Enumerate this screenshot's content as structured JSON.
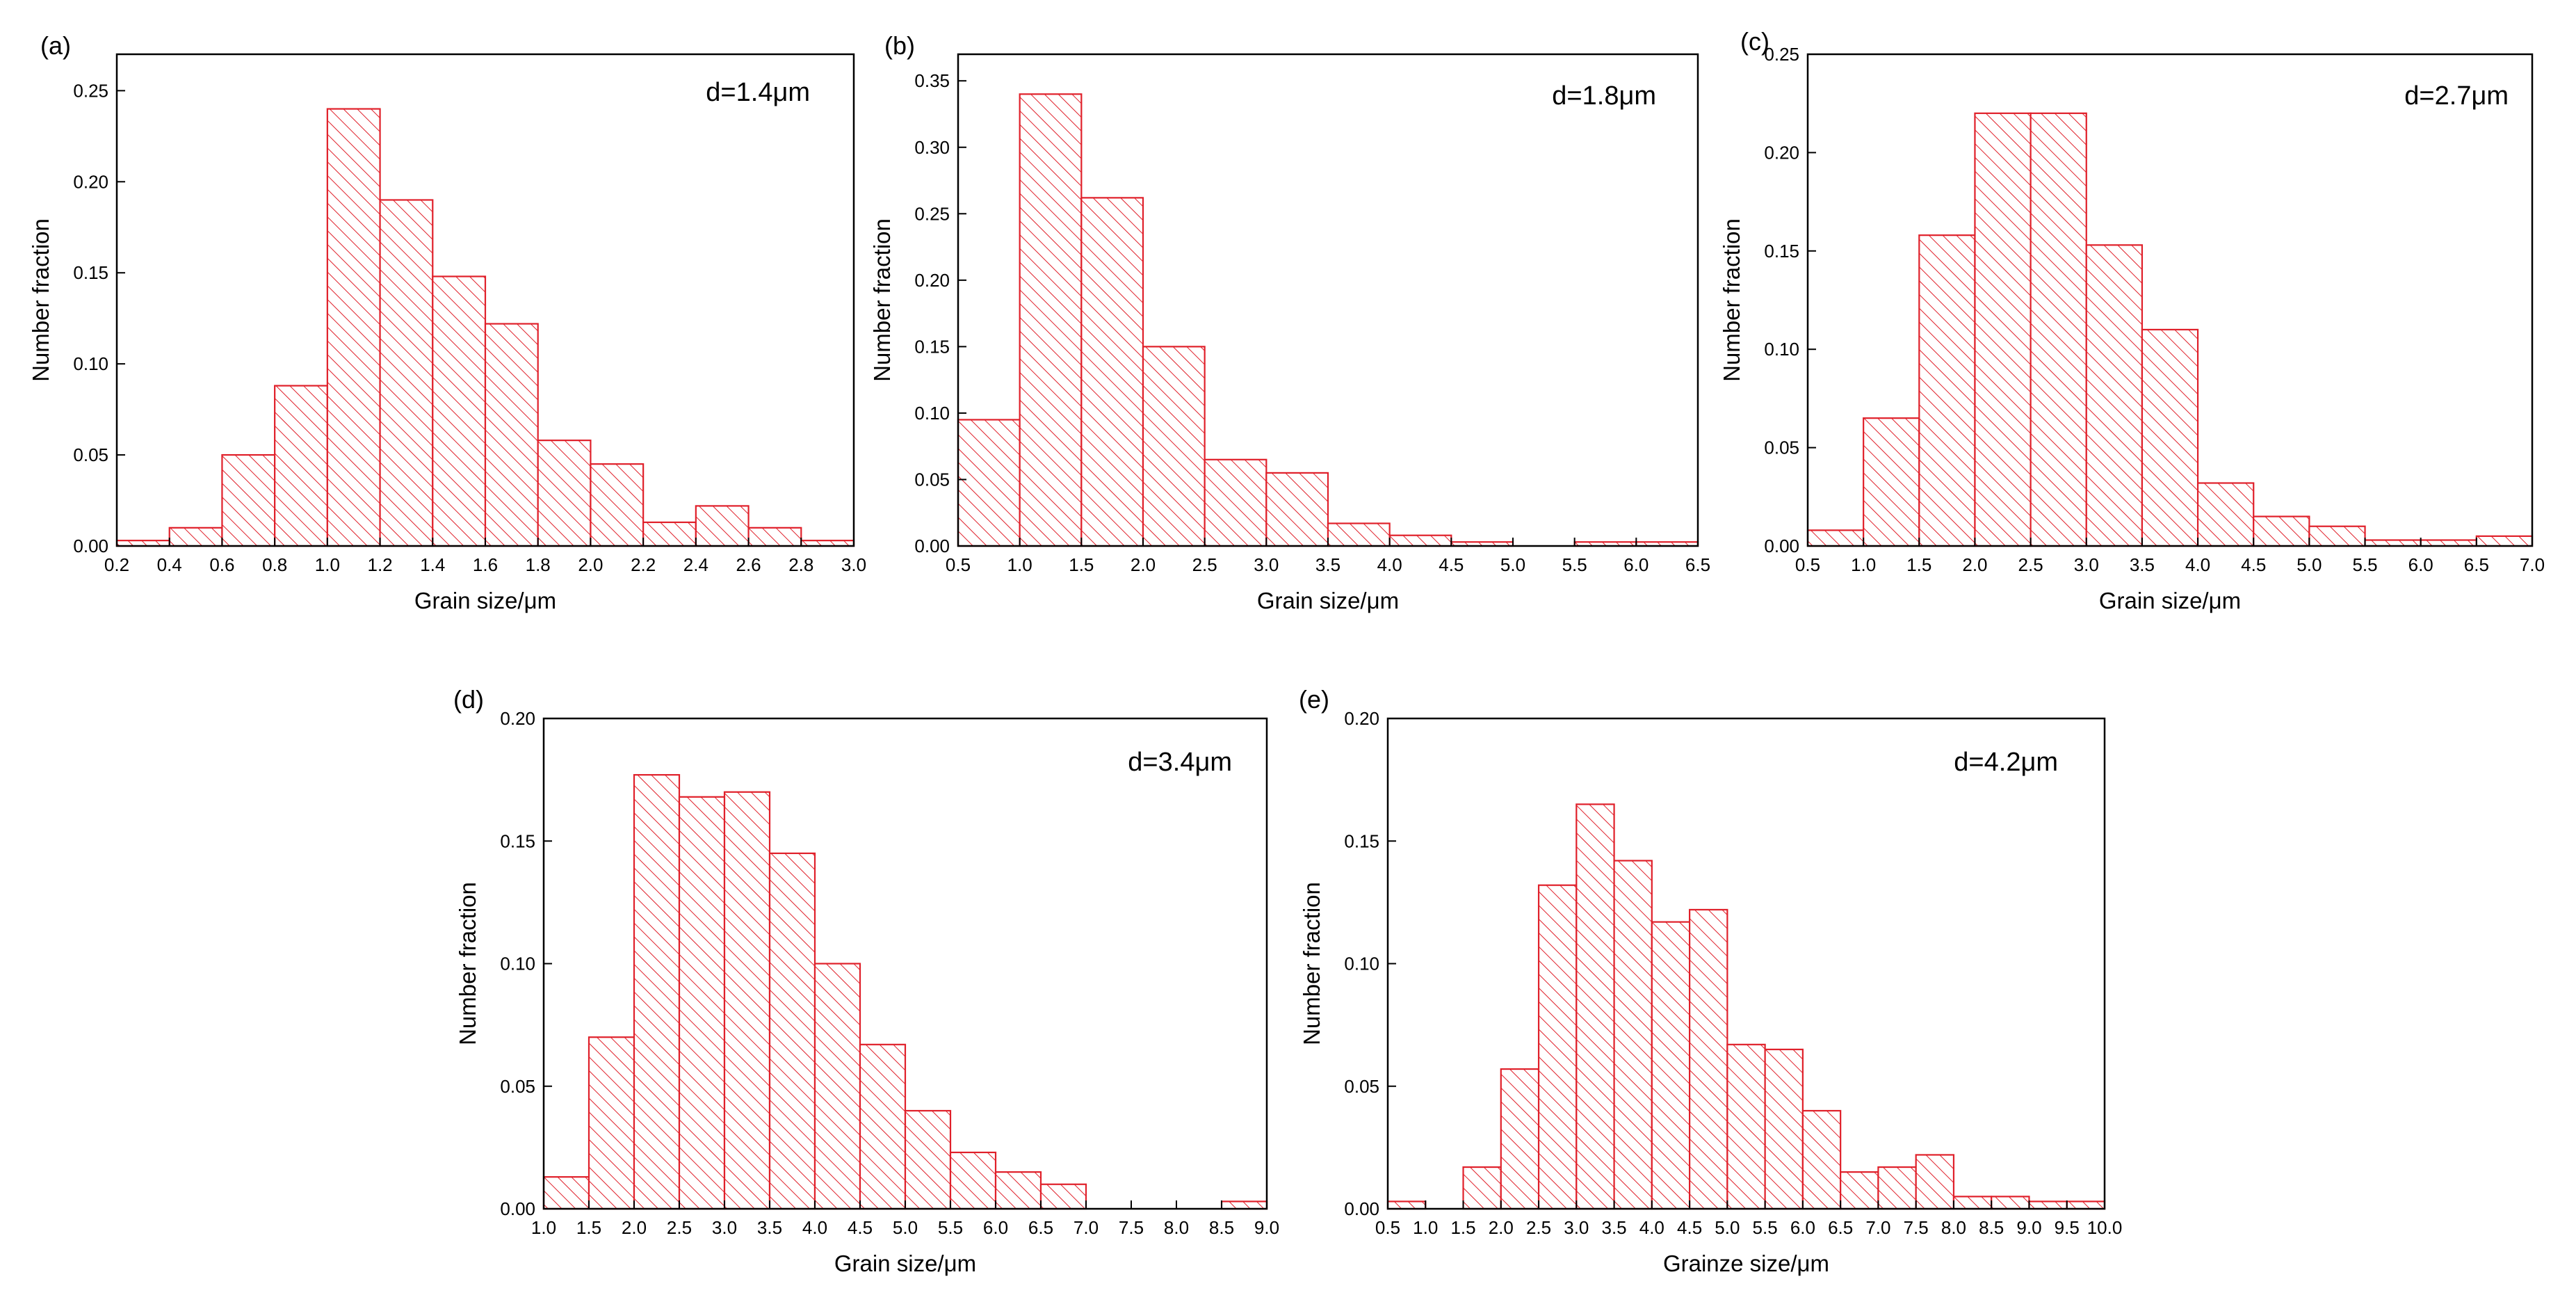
{
  "colors": {
    "bar_edge": "#e0202a",
    "hatch": "#e0202a",
    "axis": "#000000",
    "background": "#ffffff"
  },
  "chart_data": [
    {
      "type": "bar",
      "panel": "(a)",
      "annotation": "d=1.4μm",
      "xlabel": "Grain size/μm",
      "ylabel": "Number fraction",
      "xlim": [
        0.2,
        3.0
      ],
      "ylim": [
        0,
        0.27
      ],
      "xticks": [
        "0.2",
        "0.4",
        "0.6",
        "0.8",
        "1.0",
        "1.2",
        "1.4",
        "1.6",
        "1.8",
        "2.0",
        "2.2",
        "2.4",
        "2.6",
        "2.8",
        "3.0"
      ],
      "yticks": [
        "0.00",
        "0.05",
        "0.10",
        "0.15",
        "0.20",
        "0.25"
      ],
      "bin_edges": [
        0.2,
        0.4,
        0.6,
        0.8,
        1.0,
        1.2,
        1.4,
        1.6,
        1.8,
        2.0,
        2.2,
        2.4,
        2.6,
        2.8,
        3.0
      ],
      "values": [
        0.003,
        0.01,
        0.05,
        0.088,
        0.24,
        0.19,
        0.148,
        0.122,
        0.058,
        0.045,
        0.013,
        0.022,
        0.01,
        0.003
      ]
    },
    {
      "type": "bar",
      "panel": "(b)",
      "annotation": "d=1.8μm",
      "xlabel": "Grain size/μm",
      "ylabel": "Number fraction",
      "xlim": [
        0.5,
        6.5
      ],
      "ylim": [
        0,
        0.37
      ],
      "xticks": [
        "0.5",
        "1.0",
        "1.5",
        "2.0",
        "2.5",
        "3.0",
        "3.5",
        "4.0",
        "4.5",
        "5.0",
        "5.5",
        "6.0",
        "6.5"
      ],
      "yticks": [
        "0.00",
        "0.05",
        "0.10",
        "0.15",
        "0.20",
        "0.25",
        "0.30",
        "0.35"
      ],
      "bin_edges": [
        0.5,
        1.0,
        1.5,
        2.0,
        2.5,
        3.0,
        3.5,
        4.0,
        4.5,
        5.0,
        5.5,
        6.0,
        6.5
      ],
      "values": [
        0.095,
        0.34,
        0.262,
        0.15,
        0.065,
        0.055,
        0.017,
        0.008,
        0.003,
        0.0,
        0.003,
        0.003
      ]
    },
    {
      "type": "bar",
      "panel": "(c)",
      "annotation": "d=2.7μm",
      "xlabel": "Grain size/μm",
      "ylabel": "Number fraction",
      "xlim": [
        0.5,
        7.0
      ],
      "ylim": [
        0,
        0.25
      ],
      "xticks": [
        "0.5",
        "1.0",
        "1.5",
        "2.0",
        "2.5",
        "3.0",
        "3.5",
        "4.0",
        "4.5",
        "5.0",
        "5.5",
        "6.0",
        "6.5",
        "7.0"
      ],
      "yticks": [
        "0.00",
        "0.05",
        "0.10",
        "0.15",
        "0.20",
        "0.25"
      ],
      "bin_edges": [
        0.5,
        1.0,
        1.5,
        2.0,
        2.5,
        3.0,
        3.5,
        4.0,
        4.5,
        5.0,
        5.5,
        6.0,
        6.5,
        7.0
      ],
      "values": [
        0.008,
        0.065,
        0.158,
        0.22,
        0.22,
        0.153,
        0.11,
        0.032,
        0.015,
        0.01,
        0.003,
        0.003,
        0.005
      ]
    },
    {
      "type": "bar",
      "panel": "(d)",
      "annotation": "d=3.4μm",
      "xlabel": "Grain size/μm",
      "ylabel": "Number fraction",
      "xlim": [
        1.0,
        9.0
      ],
      "ylim": [
        0,
        0.2
      ],
      "xticks": [
        "1.0",
        "1.5",
        "2.0",
        "2.5",
        "3.0",
        "3.5",
        "4.0",
        "4.5",
        "5.0",
        "5.5",
        "6.0",
        "6.5",
        "7.0",
        "7.5",
        "8.0",
        "8.5",
        "9.0"
      ],
      "yticks": [
        "0.00",
        "0.05",
        "0.10",
        "0.15",
        "0.20"
      ],
      "bin_edges": [
        1.0,
        1.5,
        2.0,
        2.5,
        3.0,
        3.5,
        4.0,
        4.5,
        5.0,
        5.5,
        6.0,
        6.5,
        7.0,
        7.5,
        8.0,
        8.5,
        9.0
      ],
      "values": [
        0.013,
        0.07,
        0.177,
        0.168,
        0.17,
        0.145,
        0.1,
        0.067,
        0.04,
        0.023,
        0.015,
        0.01,
        0.0,
        0.0,
        0.0,
        0.003
      ]
    },
    {
      "type": "bar",
      "panel": "(e)",
      "annotation": "d=4.2μm",
      "xlabel": "Grainze size/μm",
      "ylabel": "Number fraction",
      "xlim": [
        0.5,
        10.0
      ],
      "ylim": [
        0,
        0.2
      ],
      "xticks": [
        "0.5",
        "1.0",
        "1.5",
        "2.0",
        "2.5",
        "3.0",
        "3.5",
        "4.0",
        "4.5",
        "5.0",
        "5.5",
        "6.0",
        "6.5",
        "7.0",
        "7.5",
        "8.0",
        "8.5",
        "9.0",
        "9.5",
        "10.0"
      ],
      "yticks": [
        "0.00",
        "0.05",
        "0.10",
        "0.15",
        "0.20"
      ],
      "bin_edges": [
        0.5,
        1.0,
        1.5,
        2.0,
        2.5,
        3.0,
        3.5,
        4.0,
        4.5,
        5.0,
        5.5,
        6.0,
        6.5,
        7.0,
        7.5,
        8.0,
        8.5,
        9.0,
        9.5,
        10.0
      ],
      "values": [
        0.003,
        0.0,
        0.017,
        0.057,
        0.132,
        0.165,
        0.142,
        0.117,
        0.122,
        0.067,
        0.065,
        0.04,
        0.015,
        0.017,
        0.022,
        0.005,
        0.005,
        0.003,
        0.003
      ]
    }
  ]
}
